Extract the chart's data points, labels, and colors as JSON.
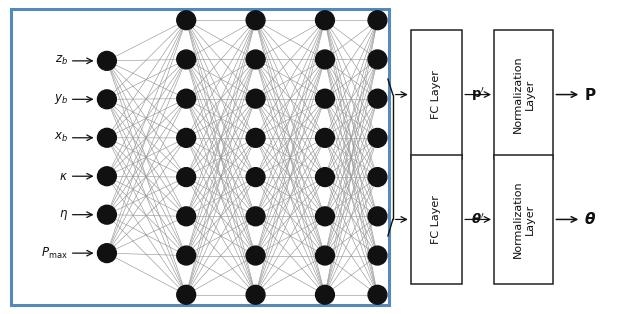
{
  "input_labels": [
    "$P_{\\mathrm{max}}$",
    "$\\eta$",
    "$\\kappa$",
    "$x_b$",
    "$y_b$",
    "$z_b$"
  ],
  "n_input": 6,
  "n_hidden1": 8,
  "n_hidden2": 8,
  "n_hidden3": 8,
  "n_output": 8,
  "node_color": "#111111",
  "line_color": "#999999",
  "line_width": 0.45,
  "border_color": "#5588bb",
  "border_width": 2.2,
  "box_edge_color": "#222222",
  "box_text_color": "#111111",
  "arrow_color": "#111111",
  "fc_label_top": "$\\mathbf{p}'$",
  "fc_label_bot": "$\\boldsymbol{\\theta}'$",
  "out_label_top": "$\\mathbf{P}$",
  "out_label_bot": "$\\boldsymbol{\\theta}$",
  "fc_box_text": "FC Layer",
  "norm_box_text": "Normalization\nLayer"
}
